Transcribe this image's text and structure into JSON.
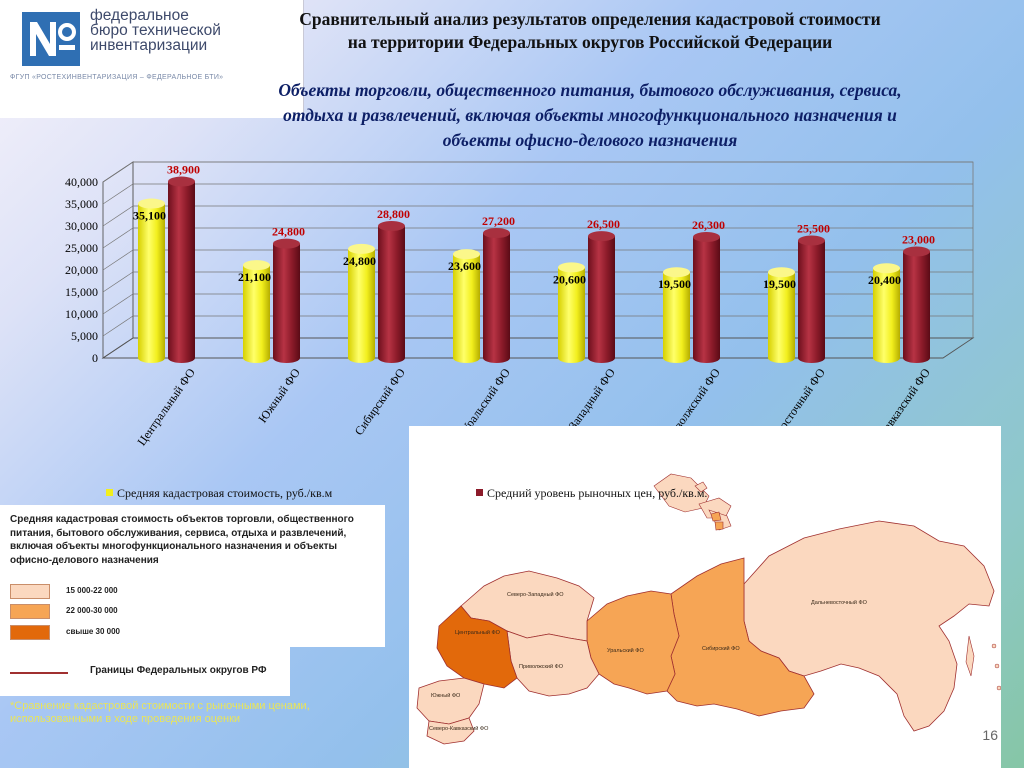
{
  "logo": {
    "line1": "федеральное",
    "line2": "бюро технической",
    "line3": "инвентаризации",
    "subline": "ФГУП «РОСТЕХИНВЕНТАРИЗАЦИЯ – ФЕДЕРАЛЬНОЕ БТИ»"
  },
  "header": {
    "title_line1": "Сравнительный анализ результатов определения кадастровой стоимости",
    "title_line2": "на территории Федеральных округов Российской Федерации",
    "subtitle_line1": "Объекты торговли, общественного питания, бытового обслуживания, сервиса,",
    "subtitle_line2": "отдыха и развлечений, включая объекты многофункционального назначения и",
    "subtitle_line3": "объекты офисно-делового назначения"
  },
  "chart_data": {
    "type": "bar",
    "categories": [
      "Центральный ФО",
      "Южный ФО",
      "Сибирский ФО",
      "Уральский ФО",
      "Северо-Западный ФО",
      "Приволжский ФО",
      "Дальневосточный ФО",
      "Северо-Кавказский ФО"
    ],
    "series": [
      {
        "name": "Средняя кадастровая стоимость, руб./кв.м",
        "color": "#f2ef1d",
        "values": [
          35100,
          21100,
          24800,
          23600,
          20600,
          19500,
          19500,
          20400
        ],
        "labels": [
          "35,100",
          "21,100",
          "24,800",
          "23,600",
          "20,600",
          "19,500",
          "19,500",
          "20,400"
        ]
      },
      {
        "name": "Средний уровень рыночных цен, руб./кв.м.",
        "color": "#8c1b2a",
        "values": [
          38900,
          24800,
          28800,
          27200,
          26500,
          26300,
          25500,
          23000
        ],
        "labels": [
          "38,900",
          "24,800",
          "28,800",
          "27,200",
          "26,500",
          "26,300",
          "25,500",
          "23,000"
        ]
      }
    ],
    "ylim": [
      0,
      40000
    ],
    "yticks": [
      "0",
      "5,000",
      "10,000",
      "15,000",
      "20,000",
      "25,000",
      "30,000",
      "35,000",
      "40,000"
    ],
    "grid": true,
    "legend": "bottom",
    "colors": {
      "label_series2": "#c00000",
      "label_series1": "#000000"
    }
  },
  "map": {
    "labels": {
      "nw": "Северо-Западный ФО",
      "central": "Центральный ФО",
      "volga": "Приволжский ФО",
      "ural": "Уральский ФО",
      "siberia": "Сибирский ФО",
      "fareast": "Дальневосточный ФО",
      "south": "Южный ФО",
      "ncauc": "Северо-Кавказский ФО"
    },
    "colors": {
      "light": "#fbd8bf",
      "mid": "#f6a555",
      "dark": "#e2690b"
    }
  },
  "key": {
    "title": "Средняя кадастровая стоимость объектов торговли, общественного питания, бытового обслуживания, сервиса, отдыха и развлечений, включая объекты многофункционального назначения и объекты офисно-делового назначения",
    "ranges": [
      {
        "label": "15 000-22 000",
        "color": "#fbd8bf"
      },
      {
        "label": "22 000-30 000",
        "color": "#f6a555"
      },
      {
        "label": "свыше 30 000",
        "color": "#e2690b"
      }
    ],
    "border_label": "Границы Федеральных округов РФ"
  },
  "footnote": "*Сравнение кадастровой стоимости с рыночными ценами, использованными в ходе проведения оценки",
  "page_number": "16"
}
